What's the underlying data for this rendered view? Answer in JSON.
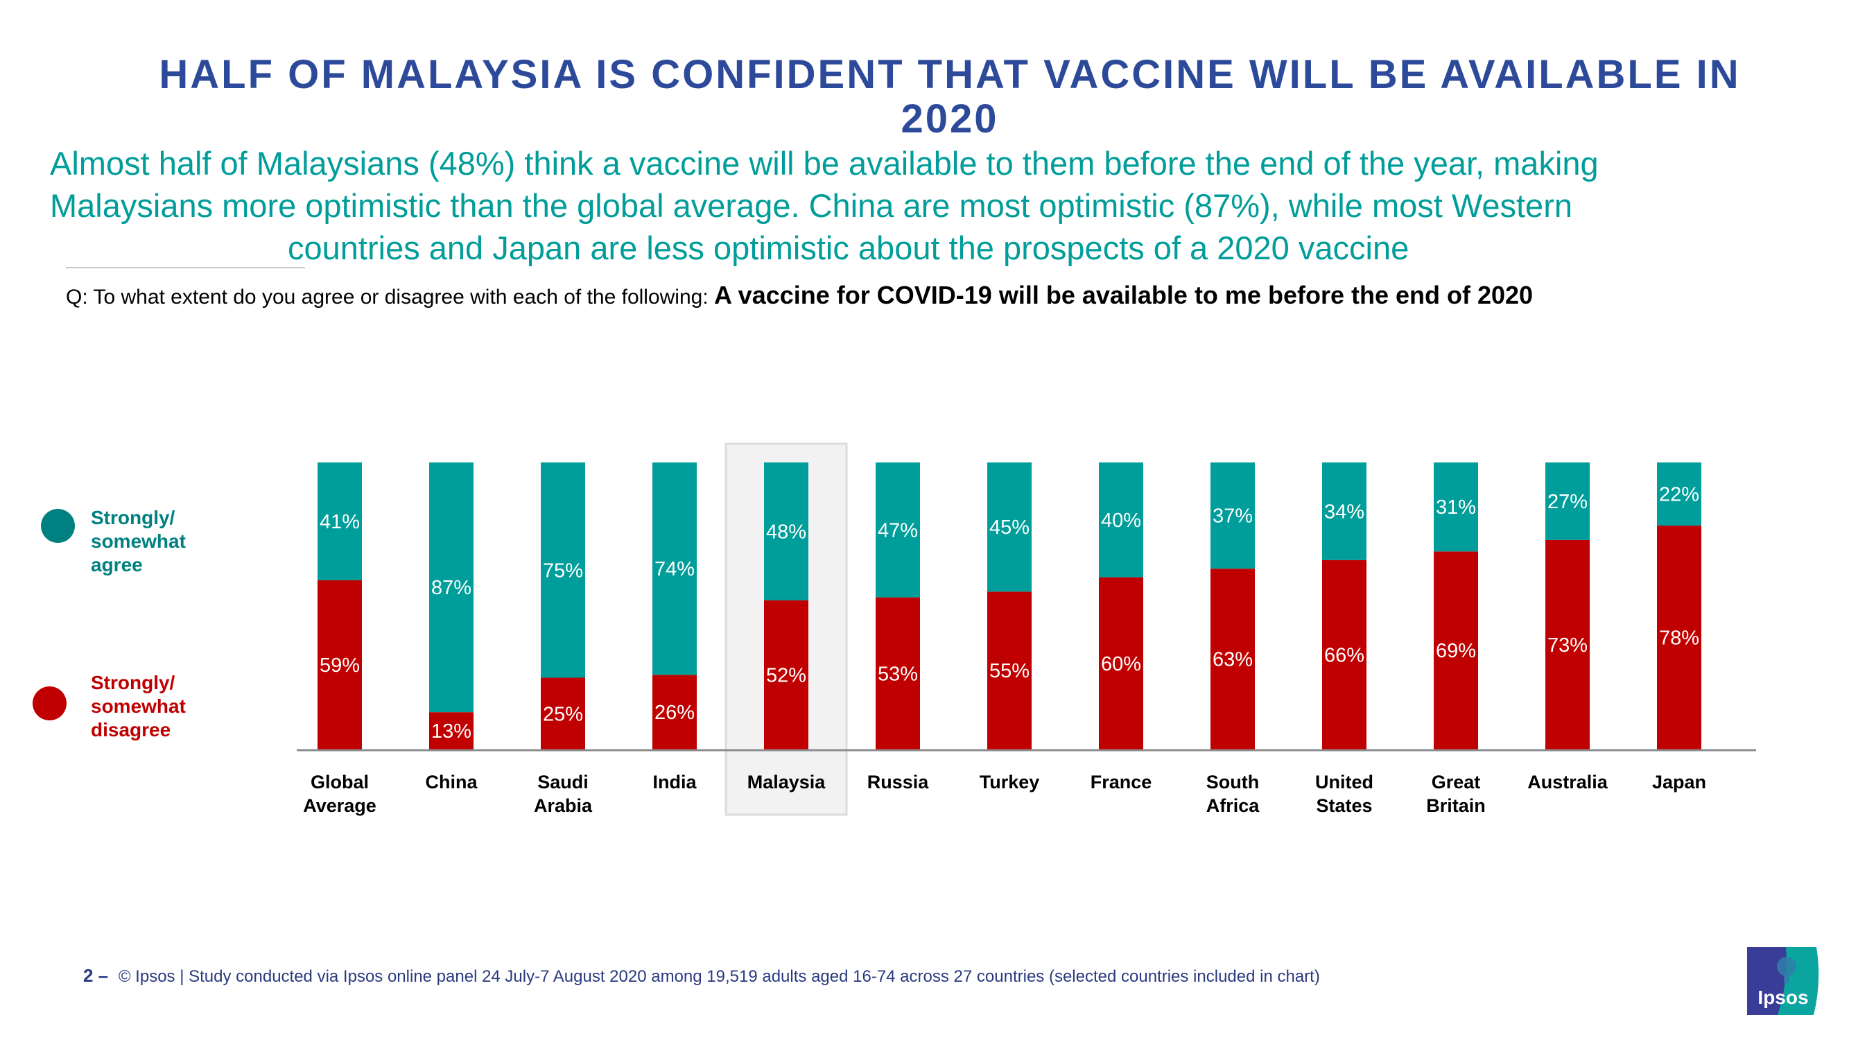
{
  "title": "HALF OF MALAYSIA IS CONFIDENT THAT VACCINE WILL BE AVAILABLE IN 2020",
  "title_lines": [
    "HALF OF MALAYSIA IS CONFIDENT THAT VACCINE WILL BE AVAILABLE IN",
    "2020"
  ],
  "subtitle_lines": [
    "Almost half of Malaysians (48%) think a vaccine will be available to them before the end of the year, making",
    "Malaysians more optimistic than the global average. China are most optimistic (87%), while most Western",
    "countries and Japan are less optimistic about the prospects of a 2020 vaccine"
  ],
  "question": {
    "prefix": "Q: To what extent do you agree or disagree with each of the following: ",
    "statement": "A vaccine for COVID-19 will be available to me before the end of 2020"
  },
  "legend": [
    {
      "label_lines": [
        "Strongly/",
        "somewhat",
        "agree"
      ],
      "color": "#008080"
    },
    {
      "label_lines": [
        "Strongly/",
        "somewhat",
        "disagree"
      ],
      "color": "#c00000"
    }
  ],
  "colors": {
    "agree": "#009e9a",
    "disagree": "#c00000",
    "title": "#2d4a9a",
    "subtitle": "#009d9a",
    "axis": "#8c8c8c",
    "highlight_bg": "#f2f2f2",
    "highlight_border": "#dcdcdc"
  },
  "chart_data": {
    "type": "bar",
    "stacked": true,
    "normalized": true,
    "title": "A vaccine for COVID-19 will be available to me before the end of 2020",
    "xlabel": "",
    "ylabel": "",
    "ylim": [
      0,
      100
    ],
    "grid": false,
    "legend_position": "left",
    "highlight_category": "Malaysia",
    "categories": [
      [
        "Global",
        "Average"
      ],
      [
        "China"
      ],
      [
        "Saudi",
        "Arabia"
      ],
      [
        "India"
      ],
      [
        "Malaysia"
      ],
      [
        "Russia"
      ],
      [
        "Turkey"
      ],
      [
        "France"
      ],
      [
        "South",
        "Africa"
      ],
      [
        "United",
        "States"
      ],
      [
        "Great",
        "Britain"
      ],
      [
        "Australia"
      ],
      [
        "Japan"
      ]
    ],
    "series": [
      {
        "name": "Strongly/somewhat disagree",
        "values": [
          59,
          13,
          25,
          26,
          52,
          53,
          55,
          60,
          63,
          66,
          69,
          73,
          78
        ]
      },
      {
        "name": "Strongly/somewhat agree",
        "values": [
          41,
          87,
          75,
          74,
          48,
          47,
          45,
          40,
          37,
          34,
          31,
          27,
          22
        ]
      }
    ]
  },
  "footer": {
    "page_number": "2 –",
    "text": "© Ipsos | Study conducted via Ipsos online panel 24 July-7 August 2020 among 19,519 adults aged 16-74 across 27 countries (selected countries included in chart)"
  },
  "logo": {
    "text": "Ipsos",
    "color_left": "#3a3d98",
    "color_right": "#0aa59f"
  }
}
